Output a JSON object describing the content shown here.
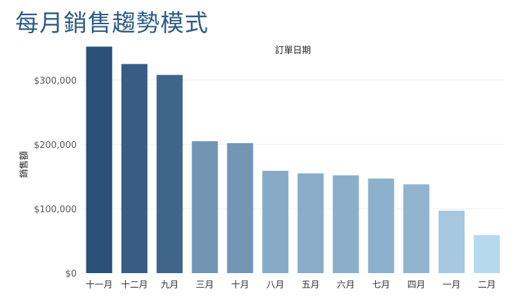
{
  "page": {
    "title": "每月銷售趨勢模式"
  },
  "chart_data": {
    "type": "bar",
    "column_header": "訂單日期",
    "ylabel": "銷售額",
    "categories": [
      "十一月",
      "十二月",
      "九月",
      "三月",
      "十月",
      "八月",
      "五月",
      "六月",
      "七月",
      "四月",
      "一月",
      "二月"
    ],
    "values": [
      352000,
      325000,
      308000,
      205000,
      202000,
      159000,
      155000,
      152000,
      147000,
      138000,
      97000,
      59000
    ],
    "yticks": [
      0,
      100000,
      200000,
      300000
    ],
    "ytick_labels": [
      "$0",
      "$100,000",
      "$200,000",
      "$300,000"
    ],
    "ylim": [
      0,
      360000
    ],
    "grid": true,
    "legend": "none",
    "colors": {
      "bar_darkest": "#2b5079",
      "bar_lightest": "#b7d9ef",
      "axis_text": "#555555",
      "gridline": "#eeeeee",
      "title": "#2e5c86"
    }
  }
}
